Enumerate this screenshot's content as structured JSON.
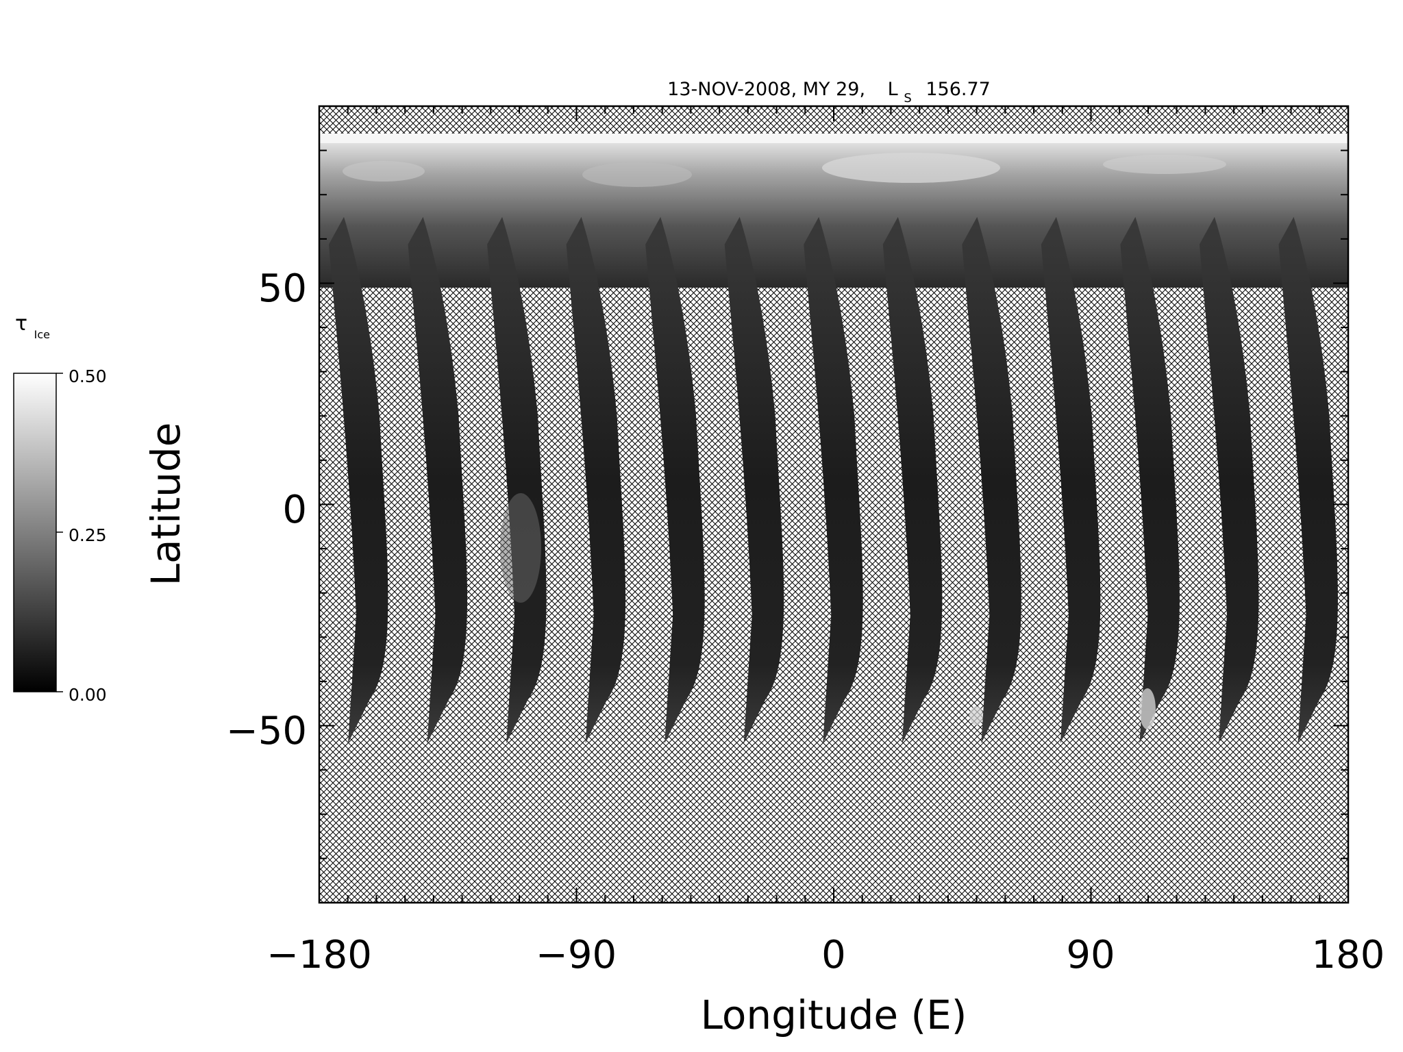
{
  "title": {
    "date": "13-NOV-2008, MY 29,",
    "ls_symbol": "L",
    "ls_subscript": "S",
    "ls_value": "156.77"
  },
  "colorbar": {
    "symbol": "τ",
    "subscript": "Ice",
    "ticks": [
      "0.50",
      "0.25",
      "0.00"
    ],
    "tick_values": [
      0.5,
      0.25,
      0.0
    ],
    "range": [
      0.0,
      0.5
    ],
    "colormap": "grayscale black-to-white"
  },
  "map": {
    "xlabel": "Longitude (E)",
    "ylabel": "Latitude",
    "xlim": [
      -180,
      180
    ],
    "ylim": [
      -90,
      90
    ],
    "x_ticks": [
      "−180",
      "−90",
      "0",
      "90",
      "180"
    ],
    "x_tick_values": [
      -180,
      -90,
      0,
      90,
      180
    ],
    "y_ticks": [
      "50",
      "0",
      "−50"
    ],
    "y_tick_values": [
      50,
      0,
      -50
    ],
    "no_data_fill": "cross-hatch",
    "colors": {
      "nodata_background": "#ffffff",
      "hatch": "#000000",
      "frame": "#000000"
    },
    "swath_count": 13,
    "swath_lat_range": [
      -54,
      82
    ]
  },
  "chart_data": {
    "type": "heatmap",
    "title": "13-NOV-2008, MY 29, Ls 156.77",
    "xlabel": "Longitude (E)",
    "ylabel": "Latitude",
    "xlim": [
      -180,
      180
    ],
    "ylim": [
      -90,
      90
    ],
    "colorbar_label": "τIce",
    "colorbar_range": [
      0.0,
      0.5
    ]
  }
}
